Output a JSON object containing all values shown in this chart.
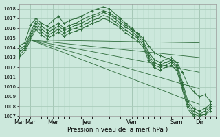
{
  "xlabel": "Pression niveau de la mer( hPa )",
  "bg_color": "#cce8dc",
  "plot_bg_color": "#cce8dc",
  "grid_color": "#aaccbb",
  "grid_color_minor": "#bbddcc",
  "line_color": "#2d6b3a",
  "ylim": [
    1007,
    1018.5
  ],
  "yticks": [
    1007,
    1008,
    1009,
    1010,
    1011,
    1012,
    1013,
    1014,
    1015,
    1016,
    1017,
    1018
  ],
  "day_labels": [
    "Mar",
    "Mar",
    "Mer",
    "Jeu",
    "Ven",
    "Sam",
    "Dir"
  ],
  "day_positions": [
    0,
    12,
    36,
    72,
    120,
    168,
    192
  ],
  "xlim": [
    0,
    210
  ],
  "detailed_lines": [
    [
      1013.8,
      1014.2,
      1015.5,
      1016.8,
      1016.2,
      1015.8,
      1016.2,
      1016.5,
      1016.0,
      1016.3,
      1016.5,
      1016.8,
      1017.1,
      1017.3,
      1017.5,
      1017.8,
      1017.6,
      1017.2,
      1016.8,
      1016.3,
      1015.9,
      1015.5,
      1014.8,
      1013.5,
      1012.8,
      1012.5,
      1012.8,
      1013.0,
      1012.5,
      1010.5,
      1008.5,
      1007.8,
      1007.5,
      1007.8,
      1008.2
    ],
    [
      1013.5,
      1014.0,
      1015.2,
      1016.5,
      1015.9,
      1015.5,
      1015.9,
      1016.2,
      1015.8,
      1016.0,
      1016.3,
      1016.5,
      1016.8,
      1017.1,
      1017.3,
      1017.6,
      1017.4,
      1017.0,
      1016.5,
      1016.1,
      1015.7,
      1015.2,
      1014.6,
      1013.2,
      1012.5,
      1012.2,
      1012.5,
      1012.7,
      1012.2,
      1010.2,
      1008.2,
      1007.5,
      1007.2,
      1007.5,
      1008.0
    ],
    [
      1013.2,
      1013.8,
      1015.0,
      1016.2,
      1015.6,
      1015.2,
      1015.6,
      1015.9,
      1015.5,
      1015.8,
      1016.0,
      1016.2,
      1016.5,
      1016.8,
      1017.0,
      1017.3,
      1017.1,
      1016.7,
      1016.2,
      1015.8,
      1015.4,
      1015.0,
      1014.3,
      1013.0,
      1012.2,
      1012.0,
      1012.2,
      1012.5,
      1012.0,
      1010.0,
      1008.0,
      1007.2,
      1007.0,
      1007.2,
      1007.8
    ],
    [
      1013.0,
      1013.5,
      1014.8,
      1015.9,
      1015.3,
      1014.9,
      1015.3,
      1015.6,
      1015.2,
      1015.5,
      1015.7,
      1015.9,
      1016.2,
      1016.5,
      1016.7,
      1017.0,
      1016.8,
      1016.4,
      1016.0,
      1015.5,
      1015.1,
      1014.7,
      1014.1,
      1012.7,
      1012.0,
      1011.7,
      1012.0,
      1012.2,
      1011.7,
      1009.7,
      1007.7,
      1007.0,
      1007.0,
      1007.2,
      1007.5
    ],
    [
      1014.2,
      1014.5,
      1016.3,
      1017.0,
      1016.5,
      1016.2,
      1016.8,
      1017.2,
      1016.5,
      1016.8,
      1017.0,
      1017.2,
      1017.5,
      1017.8,
      1018.0,
      1018.2,
      1018.0,
      1017.5,
      1017.0,
      1016.5,
      1016.0,
      1015.5,
      1015.0,
      1014.2,
      1013.5,
      1013.2,
      1013.0,
      1012.8,
      1012.5,
      1011.5,
      1010.2,
      1009.5,
      1009.0,
      1009.2,
      1008.5
    ]
  ],
  "fan_lines": [
    {
      "x0": 12,
      "y0": 1014.8,
      "x1": 192,
      "y1": 1014.5
    },
    {
      "x0": 12,
      "y0": 1014.8,
      "x1": 192,
      "y1": 1013.0
    },
    {
      "x0": 12,
      "y0": 1014.8,
      "x1": 192,
      "y1": 1011.5
    },
    {
      "x0": 12,
      "y0": 1014.8,
      "x1": 192,
      "y1": 1009.8
    },
    {
      "x0": 12,
      "y0": 1014.8,
      "x1": 192,
      "y1": 1008.2
    }
  ]
}
